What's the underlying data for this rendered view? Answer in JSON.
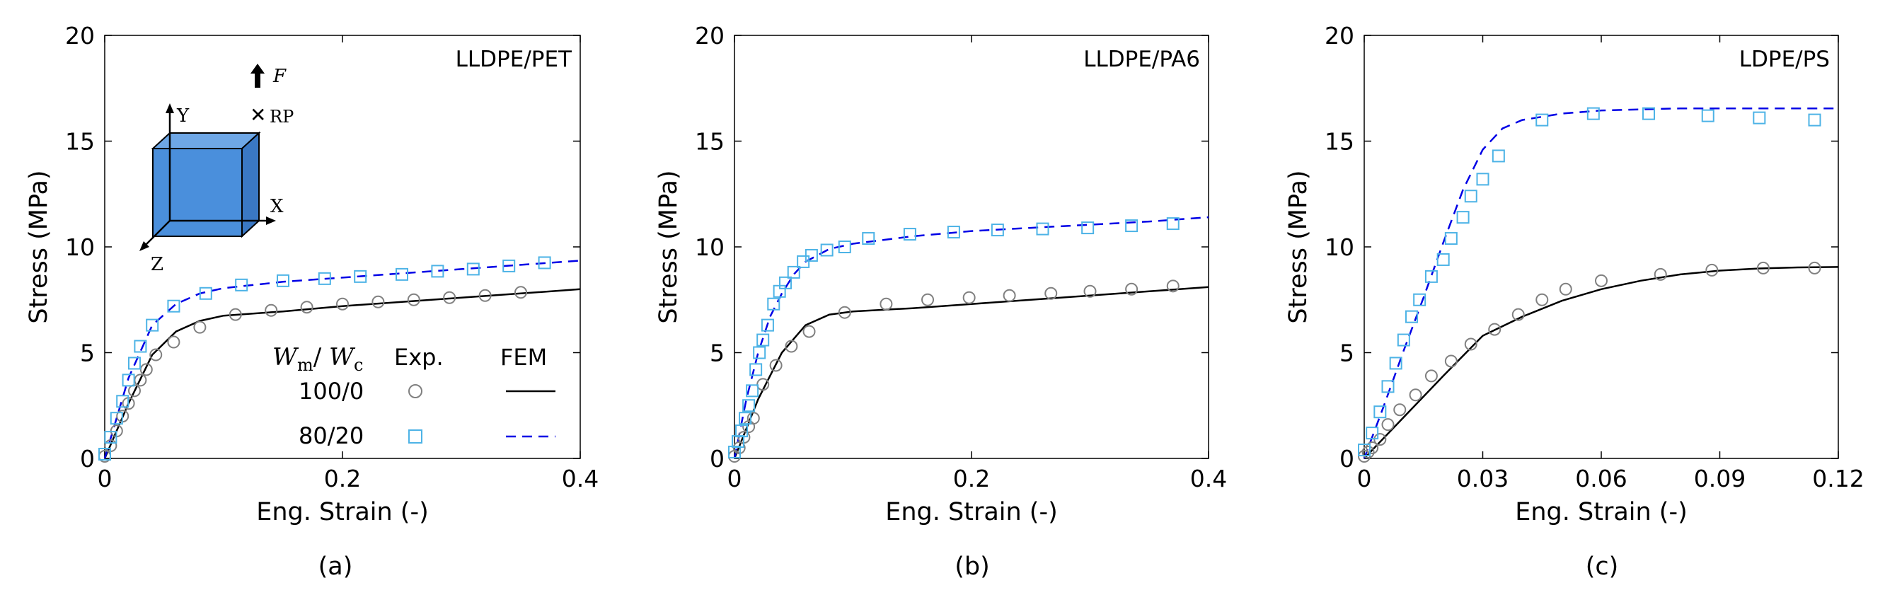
{
  "chart_data": [
    {
      "type": "scatter",
      "panel_caption": "(a)",
      "corner_label": "LLDPE/PET",
      "xlabel": "Eng. Strain (-)",
      "ylabel": "Stress (MPa)",
      "xlim": [
        0,
        0.4
      ],
      "ylim": [
        0,
        20
      ],
      "xticks": [
        0,
        0.2,
        0.4
      ],
      "xtick_labels": [
        "0",
        "0.2",
        "0.4"
      ],
      "yticks": [
        0,
        5,
        10,
        15,
        20
      ],
      "ytick_labels": [
        "0",
        "5",
        "10",
        "15",
        "20"
      ],
      "series": [
        {
          "name": "100/0 Exp.",
          "kind": "exp",
          "marker": "circle",
          "color": "#808080",
          "x": [
            0,
            0.005,
            0.01,
            0.015,
            0.02,
            0.025,
            0.03,
            0.035,
            0.043,
            0.058,
            0.08,
            0.11,
            0.14,
            0.17,
            0.2,
            0.23,
            0.26,
            0.29,
            0.32,
            0.35
          ],
          "y": [
            0.1,
            0.6,
            1.3,
            2.0,
            2.6,
            3.2,
            3.7,
            4.2,
            4.9,
            5.5,
            6.2,
            6.8,
            7.0,
            7.15,
            7.3,
            7.4,
            7.5,
            7.6,
            7.7,
            7.85
          ]
        },
        {
          "name": "80/20 Exp.",
          "kind": "exp",
          "marker": "square",
          "color": "#4db3e6",
          "x": [
            0,
            0.005,
            0.01,
            0.015,
            0.02,
            0.025,
            0.03,
            0.04,
            0.058,
            0.085,
            0.115,
            0.15,
            0.185,
            0.215,
            0.25,
            0.28,
            0.31,
            0.34,
            0.37
          ],
          "y": [
            0.2,
            1.0,
            1.9,
            2.7,
            3.7,
            4.5,
            5.3,
            6.3,
            7.2,
            7.8,
            8.2,
            8.4,
            8.5,
            8.6,
            8.7,
            8.85,
            8.95,
            9.1,
            9.25
          ]
        },
        {
          "name": "100/0 FEM",
          "kind": "fem",
          "line": "solid",
          "color": "#000000",
          "x": [
            0,
            0.02,
            0.04,
            0.06,
            0.08,
            0.1,
            0.15,
            0.2,
            0.25,
            0.3,
            0.35,
            0.4
          ],
          "y": [
            0,
            2.6,
            4.9,
            6.0,
            6.5,
            6.75,
            6.95,
            7.2,
            7.4,
            7.6,
            7.8,
            8.0
          ]
        },
        {
          "name": "80/20 FEM",
          "kind": "fem",
          "line": "dashed",
          "color": "#0000e6",
          "x": [
            0,
            0.02,
            0.04,
            0.06,
            0.08,
            0.1,
            0.15,
            0.2,
            0.25,
            0.3,
            0.35,
            0.4
          ],
          "y": [
            0,
            3.8,
            6.3,
            7.3,
            7.8,
            8.05,
            8.35,
            8.55,
            8.75,
            8.95,
            9.15,
            9.35
          ]
        }
      ],
      "legend": {
        "header_left": "W",
        "header_sub_m": "m",
        "header_slash": "/ ",
        "header_right": "W",
        "header_sub_c": "c",
        "col_exp": "Exp.",
        "col_fem": "FEM",
        "row1": "100/0",
        "row2": "80/20"
      },
      "inset": {
        "axis_y": "Y",
        "axis_x": "X",
        "axis_z": "Z",
        "force": "F",
        "rp": "RP",
        "cube_color": "#4a8fdc"
      }
    },
    {
      "type": "scatter",
      "panel_caption": "(b)",
      "corner_label": "LLDPE/PA6",
      "xlabel": "Eng. Strain (-)",
      "ylabel": "Stress (MPa)",
      "xlim": [
        0,
        0.4
      ],
      "ylim": [
        0,
        20
      ],
      "xticks": [
        0,
        0.2,
        0.4
      ],
      "xtick_labels": [
        "0",
        "0.2",
        "0.4"
      ],
      "yticks": [
        0,
        5,
        10,
        15,
        20
      ],
      "ytick_labels": [
        "0",
        "5",
        "10",
        "15",
        "20"
      ],
      "series": [
        {
          "name": "100/0 Exp.",
          "kind": "exp",
          "marker": "circle",
          "color": "#808080",
          "x": [
            0,
            0.004,
            0.008,
            0.012,
            0.016,
            0.024,
            0.035,
            0.048,
            0.063,
            0.093,
            0.128,
            0.163,
            0.198,
            0.232,
            0.267,
            0.3,
            0.335,
            0.37
          ],
          "y": [
            0.1,
            0.5,
            1.0,
            1.5,
            1.9,
            3.5,
            4.4,
            5.3,
            6.0,
            6.9,
            7.3,
            7.5,
            7.6,
            7.7,
            7.8,
            7.9,
            8.0,
            8.15
          ]
        },
        {
          "name": "80/20 Exp.",
          "kind": "exp",
          "marker": "square",
          "color": "#4db3e6",
          "x": [
            0,
            0.003,
            0.006,
            0.009,
            0.012,
            0.015,
            0.018,
            0.021,
            0.024,
            0.028,
            0.033,
            0.038,
            0.043,
            0.05,
            0.058,
            0.065,
            0.078,
            0.093,
            0.113,
            0.148,
            0.185,
            0.222,
            0.26,
            0.298,
            0.335,
            0.37
          ],
          "y": [
            0.3,
            0.8,
            1.3,
            1.9,
            2.5,
            3.2,
            4.2,
            5.0,
            5.6,
            6.3,
            7.3,
            7.9,
            8.3,
            8.8,
            9.3,
            9.6,
            9.85,
            10.0,
            10.4,
            10.6,
            10.7,
            10.8,
            10.85,
            10.9,
            11.0,
            11.1
          ]
        },
        {
          "name": "100/0 FEM",
          "kind": "fem",
          "line": "solid",
          "color": "#000000",
          "x": [
            0,
            0.02,
            0.04,
            0.06,
            0.08,
            0.1,
            0.15,
            0.2,
            0.25,
            0.3,
            0.35,
            0.4
          ],
          "y": [
            0,
            2.8,
            5.0,
            6.3,
            6.8,
            6.95,
            7.1,
            7.3,
            7.5,
            7.7,
            7.9,
            8.1
          ]
        },
        {
          "name": "80/20 FEM",
          "kind": "fem",
          "line": "dashed",
          "color": "#0000e6",
          "x": [
            0,
            0.01,
            0.02,
            0.03,
            0.04,
            0.05,
            0.06,
            0.08,
            0.1,
            0.15,
            0.2,
            0.25,
            0.3,
            0.35,
            0.4
          ],
          "y": [
            0,
            2.8,
            5.0,
            6.7,
            7.8,
            8.7,
            9.3,
            9.9,
            10.15,
            10.5,
            10.75,
            10.9,
            11.05,
            11.2,
            11.4
          ]
        }
      ]
    },
    {
      "type": "scatter",
      "panel_caption": "(c)",
      "corner_label": "LDPE/PS",
      "xlabel": "Eng. Strain (-)",
      "ylabel": "Stress (MPa)",
      "xlim": [
        0,
        0.12
      ],
      "ylim": [
        0,
        20
      ],
      "xticks": [
        0,
        0.03,
        0.06,
        0.09,
        0.12
      ],
      "xtick_labels": [
        "0",
        "0.03",
        "0.06",
        "0.09",
        "0.12"
      ],
      "yticks": [
        0,
        5,
        10,
        15,
        20
      ],
      "ytick_labels": [
        "0",
        "5",
        "10",
        "15",
        "20"
      ],
      "series": [
        {
          "name": "100/0 Exp.",
          "kind": "exp",
          "marker": "circle",
          "color": "#808080",
          "x": [
            0,
            0.001,
            0.002,
            0.004,
            0.006,
            0.009,
            0.013,
            0.017,
            0.022,
            0.027,
            0.033,
            0.039,
            0.045,
            0.051,
            0.06,
            0.075,
            0.088,
            0.101,
            0.114
          ],
          "y": [
            0.1,
            0.3,
            0.5,
            0.9,
            1.6,
            2.3,
            3.0,
            3.9,
            4.6,
            5.4,
            6.1,
            6.8,
            7.5,
            8.0,
            8.4,
            8.7,
            8.9,
            9.0,
            9.0
          ]
        },
        {
          "name": "80/20 Exp.",
          "kind": "exp",
          "marker": "square",
          "color": "#4db3e6",
          "x": [
            0,
            0.002,
            0.004,
            0.006,
            0.008,
            0.01,
            0.012,
            0.014,
            0.017,
            0.02,
            0.022,
            0.025,
            0.027,
            0.03,
            0.034,
            0.045,
            0.058,
            0.072,
            0.087,
            0.1,
            0.114
          ],
          "y": [
            0.4,
            1.2,
            2.2,
            3.4,
            4.5,
            5.6,
            6.7,
            7.5,
            8.6,
            9.4,
            10.4,
            11.4,
            12.4,
            13.2,
            14.3,
            16.0,
            16.3,
            16.3,
            16.2,
            16.1,
            16.0
          ]
        },
        {
          "name": "100/0 FEM",
          "kind": "fem",
          "line": "solid",
          "color": "#000000",
          "x": [
            0,
            0.01,
            0.02,
            0.03,
            0.04,
            0.05,
            0.06,
            0.07,
            0.08,
            0.09,
            0.1,
            0.11,
            0.12
          ],
          "y": [
            0,
            1.95,
            3.9,
            5.8,
            6.7,
            7.45,
            8.0,
            8.4,
            8.7,
            8.88,
            8.98,
            9.03,
            9.05
          ]
        },
        {
          "name": "80/20 FEM",
          "kind": "fem",
          "line": "dashed",
          "color": "#0000e6",
          "x": [
            0,
            0.005,
            0.01,
            0.015,
            0.02,
            0.025,
            0.03,
            0.035,
            0.04,
            0.05,
            0.06,
            0.07,
            0.08,
            0.09,
            0.1,
            0.11,
            0.12
          ],
          "y": [
            0,
            2.5,
            5.1,
            7.6,
            10.2,
            12.7,
            14.6,
            15.6,
            16.0,
            16.3,
            16.45,
            16.5,
            16.55,
            16.55,
            16.55,
            16.55,
            16.55
          ]
        }
      ]
    }
  ]
}
